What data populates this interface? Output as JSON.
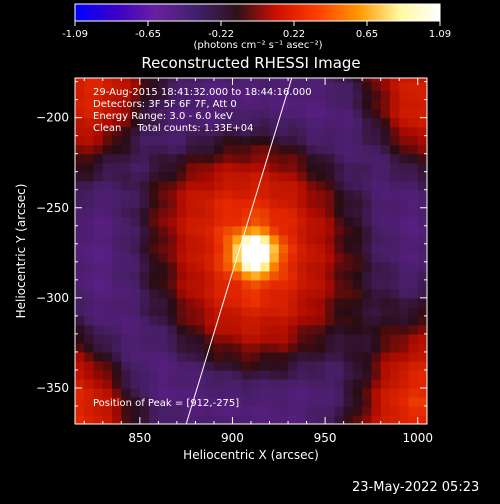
{
  "colorbar": {
    "min_label": "-1.09",
    "max_label": "1.09",
    "tick_labels": [
      "-1.09",
      "-0.65",
      "-0.22",
      "0.22",
      "0.65",
      "1.09"
    ],
    "unit_label": "(photons cm⁻² s⁻¹ asec⁻²)",
    "colors": [
      "#0000ff",
      "#3a00c8",
      "#6a1fa0",
      "#40206a",
      "#301018",
      "#d01000",
      "#ff4000",
      "#ff9800",
      "#fff8a0",
      "#ffffff"
    ]
  },
  "chart_data": {
    "type": "heatmap",
    "title": "Reconstructed RHESSI Image",
    "xlabel": "Heliocentric X (arcsec)",
    "ylabel": "Heliocentric Y (arcsec)",
    "xlim": [
      815,
      1005
    ],
    "ylim": [
      -370,
      -178
    ],
    "x_ticks": [
      850,
      900,
      950,
      1000
    ],
    "y_ticks": [
      -200,
      -250,
      -300,
      -350
    ],
    "peak": {
      "x": 912,
      "y": -275
    },
    "limb_line": [
      [
        875,
        -370
      ],
      [
        932,
        -178
      ]
    ],
    "intensity_range": [
      -1.09,
      1.09
    ]
  },
  "annotations": {
    "line1": "29-Aug-2015 18:41:32.000 to 18:44:16.000",
    "line2": "Detectors: 3F 5F 6F 7F, Att 0",
    "line3": "Energy Range: 3.0 - 6.0 keV",
    "line4": "Clean     Total counts: 1.33E+04",
    "peak_label": "Position of Peak = [912,-275]"
  },
  "footer": {
    "date": "23-May-2022 05:23"
  }
}
